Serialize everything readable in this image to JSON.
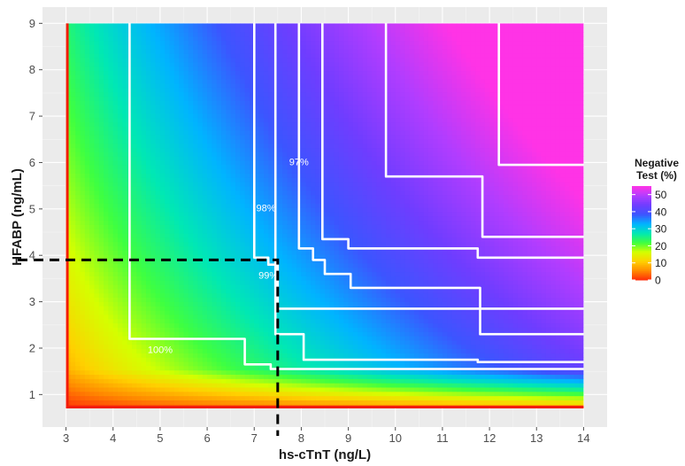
{
  "chart_data": {
    "type": "heatmap",
    "title": "",
    "xlabel": "hs-cTnT (ng/L)",
    "ylabel": "HFABP (ng/mL)",
    "xlim": [
      2.5,
      14.5
    ],
    "ylim": [
      0.3,
      9.35
    ],
    "x_ticks": [
      3,
      4,
      5,
      6,
      7,
      8,
      9,
      10,
      11,
      12,
      13,
      14
    ],
    "y_ticks": [
      1,
      2,
      3,
      4,
      5,
      6,
      7,
      8,
      9
    ],
    "data_x_range": [
      3,
      14
    ],
    "data_y_range": [
      0.7,
      9
    ],
    "value_range": [
      0,
      55
    ],
    "colorscale": [
      "#ff2a0a",
      "#ff8a00",
      "#ffd000",
      "#d4ff00",
      "#3fff40",
      "#00e8b4",
      "#00b4ff",
      "#3c55ff",
      "#6f3dff",
      "#b03dff",
      "#ff33e6"
    ],
    "legend": {
      "title": [
        "Negative",
        "Test (%)"
      ],
      "ticks": [
        0,
        10,
        20,
        30,
        40,
        50
      ],
      "position": "right"
    },
    "grid": true,
    "contours": [
      {
        "label": "100%",
        "points": [
          [
            4.35,
            9.0
          ],
          [
            4.35,
            2.2
          ],
          [
            6.8,
            2.2
          ],
          [
            6.8,
            1.65
          ],
          [
            7.35,
            1.65
          ],
          [
            7.35,
            1.55
          ],
          [
            14,
            1.55
          ]
        ]
      },
      {
        "label": "99%",
        "points": [
          [
            7.45,
            9.0
          ],
          [
            7.45,
            2.3
          ],
          [
            8.05,
            2.3
          ],
          [
            8.05,
            1.75
          ],
          [
            11.75,
            1.75
          ],
          [
            11.75,
            1.7
          ],
          [
            14,
            1.7
          ]
        ]
      },
      {
        "label": "98%",
        "points": [
          [
            7.0,
            9.0
          ],
          [
            7.0,
            3.95
          ],
          [
            7.3,
            3.95
          ],
          [
            7.3,
            3.8
          ],
          [
            7.5,
            3.8
          ],
          [
            7.5,
            2.85
          ],
          [
            14,
            2.85
          ]
        ]
      },
      {
        "label": "97%",
        "points": [
          [
            7.95,
            9.0
          ],
          [
            7.95,
            4.15
          ],
          [
            8.25,
            4.15
          ],
          [
            8.25,
            3.9
          ],
          [
            8.5,
            3.9
          ],
          [
            8.5,
            3.6
          ],
          [
            9.05,
            3.6
          ],
          [
            9.05,
            3.3
          ],
          [
            11.8,
            3.3
          ],
          [
            11.8,
            2.3
          ],
          [
            14,
            2.3
          ]
        ]
      },
      {
        "label": "",
        "points": [
          [
            8.45,
            9.0
          ],
          [
            8.45,
            4.35
          ],
          [
            9.0,
            4.35
          ],
          [
            9.0,
            4.15
          ],
          [
            11.75,
            4.15
          ],
          [
            11.75,
            3.95
          ],
          [
            14,
            3.95
          ]
        ]
      },
      {
        "label": "",
        "points": [
          [
            9.8,
            9.0
          ],
          [
            9.8,
            5.7
          ],
          [
            11.85,
            5.7
          ],
          [
            11.85,
            4.4
          ],
          [
            14,
            4.4
          ]
        ]
      },
      {
        "label": "",
        "points": [
          [
            12.2,
            9.0
          ],
          [
            12.2,
            5.95
          ],
          [
            14,
            5.95
          ]
        ]
      }
    ],
    "contour_labels": [
      {
        "text": "100%",
        "x": 5.0,
        "y": 1.95
      },
      {
        "text": "98%",
        "x": 7.25,
        "y": 5.0
      },
      {
        "text": "97%",
        "x": 7.95,
        "y": 6.0
      },
      {
        "text": "99%",
        "x": 7.3,
        "y": 3.55
      }
    ],
    "reference_line": {
      "x": 7.5,
      "y": 3.9,
      "style": "dashed"
    }
  }
}
